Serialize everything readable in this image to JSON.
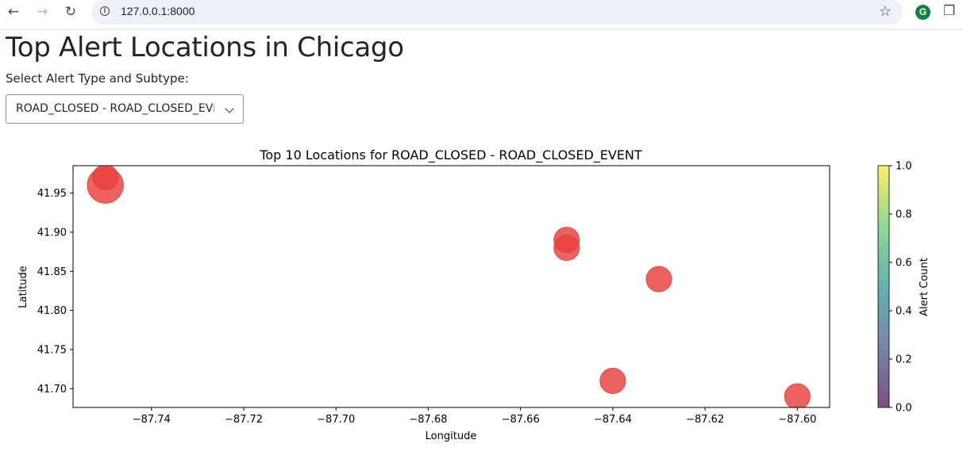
{
  "browser": {
    "url": "127.0.0.1:8000",
    "back_icon": "arrow-left-icon",
    "forward_icon": "arrow-right-icon",
    "reload_icon": "reload-icon",
    "extension_letter": "G"
  },
  "page": {
    "title": "Top Alert Locations in Chicago",
    "select_label": "Select Alert Type and Subtype:",
    "select_value": "ROAD_CLOSED - ROAD_CLOSED_EVENT"
  },
  "chart_data": {
    "type": "scatter",
    "title": "Top 10 Locations for ROAD_CLOSED - ROAD_CLOSED_EVENT",
    "xlabel": "Longitude",
    "ylabel": "Latitude",
    "xlim": [
      -87.757,
      -87.593
    ],
    "ylim": [
      41.676,
      41.985
    ],
    "xticks": [
      -87.74,
      -87.72,
      -87.7,
      -87.68,
      -87.66,
      -87.64,
      -87.62,
      -87.6
    ],
    "xtick_labels": [
      "−87.74",
      "−87.72",
      "−87.70",
      "−87.68",
      "−87.66",
      "−87.64",
      "−87.62",
      "−87.60"
    ],
    "yticks": [
      41.7,
      41.75,
      41.8,
      41.85,
      41.9,
      41.95
    ],
    "ytick_labels": [
      "41.70",
      "41.75",
      "41.80",
      "41.85",
      "41.90",
      "41.95"
    ],
    "point_color": "#e8403d",
    "points": [
      {
        "x": -87.75,
        "y": 41.96,
        "size": 2
      },
      {
        "x": -87.75,
        "y": 41.97,
        "size": 1
      },
      {
        "x": -87.65,
        "y": 41.89,
        "size": 1
      },
      {
        "x": -87.65,
        "y": 41.88,
        "size": 1
      },
      {
        "x": -87.63,
        "y": 41.84,
        "size": 1
      },
      {
        "x": -87.64,
        "y": 41.71,
        "size": 1
      },
      {
        "x": -87.6,
        "y": 41.69,
        "size": 1
      }
    ],
    "colorbar": {
      "label": "Alert Count",
      "range": [
        0.0,
        1.0
      ],
      "ticks": [
        0.0,
        0.2,
        0.4,
        0.6,
        0.8,
        1.0
      ],
      "tick_labels": [
        "0.0",
        "0.2",
        "0.4",
        "0.6",
        "0.8",
        "1.0"
      ],
      "colormap": [
        "#440154",
        "#3b528b",
        "#21918c",
        "#5ec962",
        "#fde725"
      ]
    },
    "grid": false
  }
}
